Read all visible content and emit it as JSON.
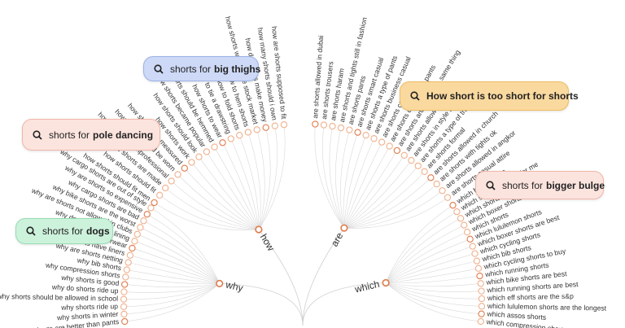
{
  "branches": [
    {
      "label": "why",
      "leaves": [
        "why shorts are better than pants",
        "why shorts in winter",
        "why shorts ride up",
        "why shorts should be allowed in school",
        "why do shorts ride up",
        "why shorts is good",
        "why compression shorts",
        "why bib shorts",
        "why are shorts netting",
        "why do shorts have liners",
        "why shorts underwear",
        "why do shorts have lining",
        "why are shorts not allowed in clubs",
        "why bike shorts are the worst",
        "why cargo shorts are bad",
        "why are shorts so expensive",
        "why cargo shorts are out of style"
      ]
    },
    {
      "label": "how",
      "leaves": [
        "how shorts should fit men",
        "how shorts should fit",
        "how shorts are made",
        "how shorts are unprofessional",
        "how shorts should be worn",
        "how shorts are measured",
        "how shorts work",
        "how shorts should look",
        "how shorts became popular",
        "how shorts should be hemmed",
        "how shorts to wear",
        "how to tie a drawstring",
        "how to fold shorts",
        "how to hem shorts",
        "how shorts work in the stock market",
        "how do shorts make money",
        "how many shorts should i own",
        "how are shorts supposed to fit"
      ]
    },
    {
      "label": "are",
      "leaves": [
        "are shorts allowed in dubai",
        "are shorts trousers",
        "are shorts haram",
        "are shorts and tights still in fashion",
        "are shorts pants",
        "are shorts smart casual",
        "are shorts a type of pants",
        "are shorts business casual",
        "are shorts casual",
        "are shorts considered pants",
        "are shorts and pants the same thing",
        "are shorts allowed in uae",
        "are shorts in style 2019",
        "are shorts a type of trousers",
        "are shorts formal",
        "are shorts allowed in church",
        "are shorts with tights ok",
        "are shorts allowed in angkor",
        "are shorts casual attire"
      ]
    },
    {
      "label": "which",
      "leaves": [
        "which black shorts",
        "which shorts are right for me",
        "which shorts are informed",
        "which boxer shorts",
        "which shorts",
        "which lululemon shorts",
        "which boxer shorts are best",
        "which cycling shorts",
        "which bib shorts",
        "which cycling shorts to buy",
        "which running shorts",
        "which bike shorts are best",
        "which running shorts are best",
        "which eff shorts are the s&p",
        "which lululemon shorts are the longest",
        "which assos shorts",
        "which compression shorts are the best"
      ]
    }
  ],
  "callouts": [
    {
      "prefix": "shorts for",
      "bold": "big thighs"
    },
    {
      "prefix": "shorts for",
      "bold": "pole dancing"
    },
    {
      "prefix": "shorts for",
      "bold": "dogs"
    },
    {
      "bold": "How short is too short for shorts"
    },
    {
      "prefix": "shorts for",
      "bold": "bigger bulge"
    }
  ]
}
